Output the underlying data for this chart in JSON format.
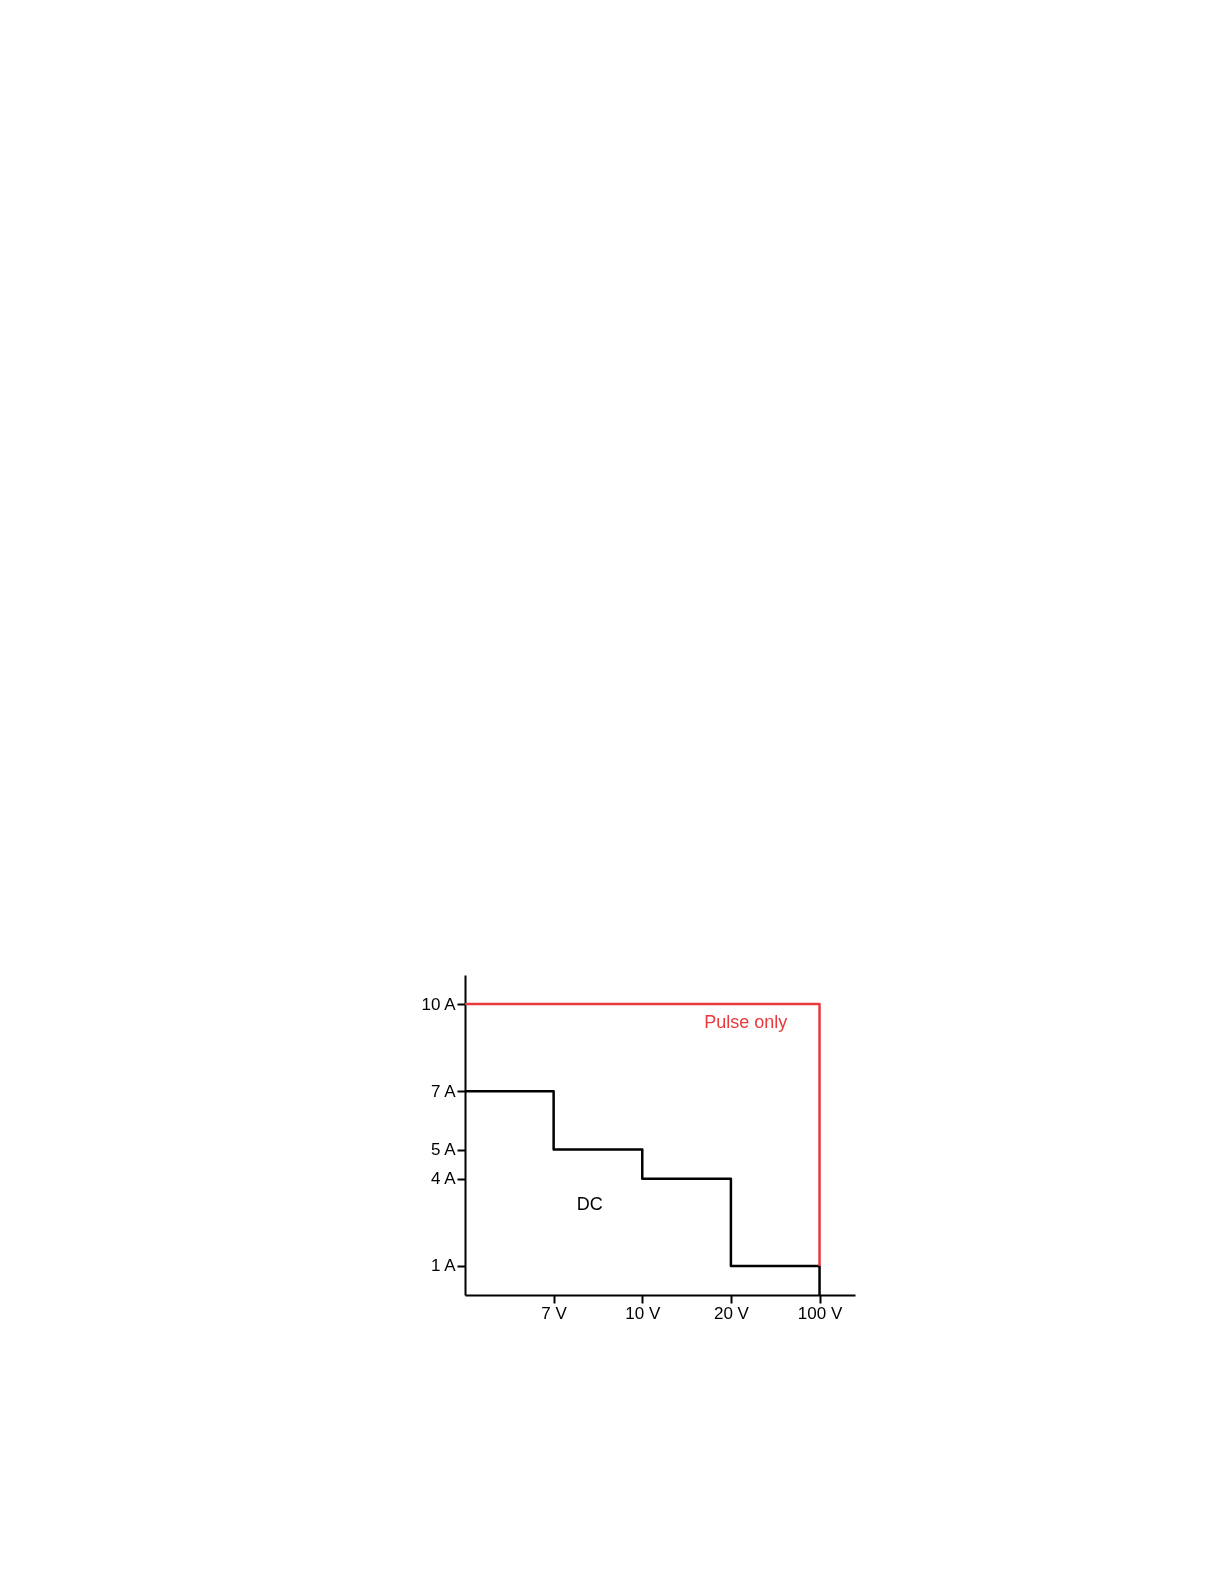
{
  "chart_data": {
    "type": "step",
    "categories": [
      null,
      "7 V",
      "10 V",
      "20 V",
      "100 V"
    ],
    "series": [
      {
        "color": "#000000",
        "values": [
          7,
          5,
          4,
          1,
          0
        ]
      },
      {
        "color": "#e8393b",
        "values": [
          10,
          10,
          10,
          10,
          1
        ]
      }
    ],
    "ylim": [
      0,
      11
    ],
    "yticks": [
      {
        "value": 1,
        "label": "1 A"
      },
      {
        "value": 4,
        "label": "4 A"
      },
      {
        "value": 5,
        "label": "5 A"
      },
      {
        "value": 7,
        "label": "7 A"
      },
      {
        "value": 10,
        "label": "10 A"
      }
    ],
    "annotations": [
      "DC",
      "Pulse only"
    ],
    "grid": false
  }
}
